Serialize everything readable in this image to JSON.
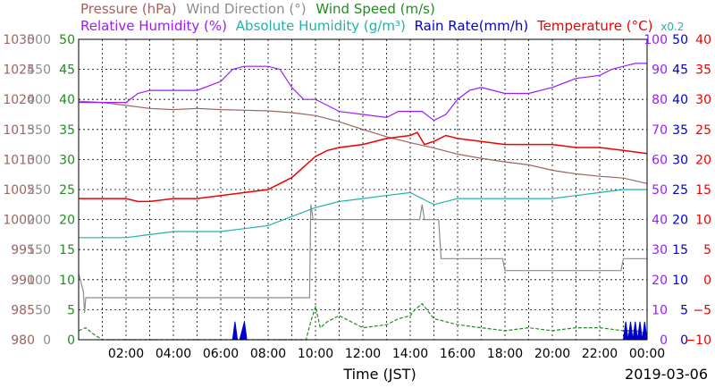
{
  "legend_row1": [
    {
      "text": "Pressure (hPa)",
      "color": "#a0625e"
    },
    {
      "text": "Wind Direction (°)",
      "color": "#8c8c8c"
    },
    {
      "text": "Wind Speed (m/s)",
      "color": "#228b22"
    }
  ],
  "legend_row2": [
    {
      "text": "Relative Humidity (%)",
      "color": "#9a1bff"
    },
    {
      "text": "Absolute Humidity (g/m³)",
      "color": "#20b2aa"
    },
    {
      "text": "Rain Rate(mm/h)",
      "color": "#0000cc"
    },
    {
      "text": "Temperature (°C)",
      "color": "#ee0000"
    }
  ],
  "scale_note": {
    "text": "x0.2",
    "color": "#20b2aa"
  },
  "x_title": "Time (JST)",
  "date_label": "2019-03-06",
  "chart_data": {
    "type": "line",
    "x_unit": "hours (JST)",
    "xlim": [
      0,
      24
    ],
    "x_ticks": [
      "02:00",
      "04:00",
      "06:00",
      "08:00",
      "10:00",
      "12:00",
      "14:00",
      "16:00",
      "18:00",
      "20:00",
      "22:00",
      "00:00"
    ],
    "left_axes": [
      {
        "name": "Pressure (hPa)",
        "color": "#a0625e",
        "ticks": [
          "1030",
          "1025",
          "1020",
          "1015",
          "1010",
          "1005",
          "1000",
          "995",
          "990",
          "985",
          "980"
        ]
      },
      {
        "name": "Wind Direction (°)",
        "color": "#8c8c8c",
        "ticks": [
          "500",
          "450",
          "400",
          "350",
          "300",
          "250",
          "200",
          "150",
          "100",
          "50",
          "0"
        ]
      },
      {
        "name": "Wind Speed (m/s)",
        "color": "#228b22",
        "ticks": [
          "50",
          "45",
          "40",
          "35",
          "30",
          "25",
          "20",
          "15",
          "10",
          "5",
          "0"
        ]
      }
    ],
    "right_axes": [
      {
        "name": "Relative Humidity (%)",
        "color": "#9a1bff",
        "ticks": [
          "100",
          "90",
          "80",
          "70",
          "60",
          "50",
          "40",
          "30",
          "20",
          "10",
          "0"
        ]
      },
      {
        "name": "Rain Rate(mm/h)",
        "color": "#0000cc",
        "ticks": [
          "50",
          "45",
          "40",
          "35",
          "30",
          "25",
          "20",
          "15",
          "10",
          "5",
          "0"
        ]
      },
      {
        "name": "Temperature (°C)",
        "color": "#ee0000",
        "ticks": [
          "40",
          "35",
          "30",
          "25",
          "20",
          "15",
          "10",
          "5",
          "0",
          "−5",
          "−10"
        ]
      }
    ],
    "series": [
      {
        "name": "Pressure (hPa)",
        "axis": "pressure",
        "color": "#a0625e",
        "x": [
          0,
          1,
          2,
          3,
          4,
          5,
          6,
          7,
          8,
          9,
          10,
          11,
          12,
          13,
          14,
          15,
          16,
          17,
          18,
          19,
          20,
          21,
          22,
          23,
          24
        ],
        "y": [
          1019.7,
          1019.5,
          1019,
          1018.5,
          1018.3,
          1018.5,
          1018.3,
          1018.2,
          1018.1,
          1017.8,
          1017.3,
          1016.3,
          1015,
          1013.8,
          1012.8,
          1011.9,
          1010.9,
          1010.2,
          1009.6,
          1009.1,
          1008.2,
          1007.6,
          1007.2,
          1006.9,
          1006
        ]
      },
      {
        "name": "Wind Direction (°)",
        "axis": "wind_direction",
        "color": "#8c8c8c",
        "x": [
          0,
          0.2,
          0.25,
          0.3,
          9.75,
          9.8,
          9.9,
          10.3,
          10.35,
          14.4,
          14.5,
          14.6,
          15.2,
          15.3,
          17.9,
          18,
          22.9,
          23,
          24
        ],
        "y": [
          110,
          80,
          45,
          70,
          70,
          225,
          200,
          200,
          200,
          200,
          225,
          200,
          200,
          135,
          135,
          115,
          115,
          135,
          135
        ]
      },
      {
        "name": "Wind Speed (m/s)",
        "axis": "wind_speed",
        "color": "#228b22",
        "x": [
          0,
          0.3,
          0.6,
          1,
          9.6,
          9.8,
          10,
          10.2,
          10.5,
          11,
          12,
          13,
          13.5,
          14,
          14.2,
          14.5,
          15,
          15.5,
          16,
          17,
          18,
          19,
          20,
          21,
          22,
          23,
          23.5,
          24
        ],
        "y": [
          1.5,
          2,
          1,
          0,
          0,
          3,
          5.5,
          2,
          3,
          4,
          2,
          2.5,
          3.5,
          4,
          5,
          6,
          3.5,
          3,
          2.5,
          2,
          1.5,
          2,
          1.5,
          2,
          2,
          1.5,
          1.5,
          1
        ]
      },
      {
        "name": "Relative Humidity (%)",
        "axis": "humidity",
        "color": "#9a1bff",
        "x": [
          0,
          1,
          2,
          2.5,
          3,
          4,
          5,
          6,
          6.5,
          7,
          8,
          8.5,
          9,
          9.5,
          10,
          10.5,
          11,
          12,
          13,
          13.5,
          14,
          14.5,
          15,
          15.5,
          16,
          16.5,
          17,
          18,
          18.5,
          19,
          20,
          21,
          22,
          22.5,
          23,
          23.5,
          24
        ],
        "y": [
          79,
          79,
          79,
          82,
          83,
          83,
          83,
          86,
          90,
          91,
          91,
          90,
          84,
          80,
          80,
          78,
          76,
          75,
          74,
          76,
          76,
          76,
          73,
          75,
          80,
          83,
          84,
          82,
          82,
          82,
          84,
          87,
          88,
          90,
          91,
          92,
          92
        ]
      },
      {
        "name": "Absolute Humidity (g/m³)",
        "axis": "abs_humidity",
        "color": "#20b2aa",
        "x": [
          0,
          1,
          2,
          3,
          4,
          5,
          6,
          7,
          8,
          9,
          10,
          11,
          12,
          13,
          14,
          14.5,
          15,
          16,
          17,
          18,
          19,
          20,
          21,
          22,
          23,
          24
        ],
        "y": [
          17,
          17,
          17,
          17.5,
          18,
          18,
          18,
          18.5,
          19,
          20.5,
          22,
          23,
          23.5,
          24,
          24.5,
          23.5,
          22.5,
          23.5,
          23.5,
          23.5,
          23.5,
          23.5,
          24,
          24.5,
          25,
          25
        ]
      },
      {
        "name": "Rain Rate(mm/h)",
        "axis": "rain",
        "color": "#0000cc",
        "x": [
          6.5,
          6.6,
          6.7,
          6.8,
          7,
          7.1,
          7.2,
          23,
          23.1,
          23.2,
          23.3,
          23.4,
          23.5,
          23.6,
          23.7,
          23.8,
          23.9,
          24
        ],
        "y": [
          0,
          3,
          0,
          0,
          3,
          0,
          0,
          0,
          3,
          0,
          3,
          0,
          3,
          0,
          3,
          0,
          3,
          0
        ]
      },
      {
        "name": "Temperature (°C)",
        "axis": "temperature",
        "color": "#ee0000",
        "x": [
          0,
          1,
          2,
          2.5,
          3,
          4,
          5,
          6,
          7,
          8,
          9,
          10,
          10.5,
          11,
          12,
          13,
          14,
          14.3,
          14.6,
          15,
          15.5,
          16,
          17,
          18,
          19,
          20,
          21,
          22,
          23,
          24
        ],
        "y": [
          13.5,
          13.5,
          13.5,
          13,
          13,
          13.5,
          13.5,
          14,
          14.5,
          15,
          17,
          20.5,
          21.5,
          22,
          22.5,
          23.5,
          24,
          24.5,
          22.5,
          23,
          24,
          23.5,
          23,
          22.5,
          22.5,
          22.5,
          22,
          22,
          21.5,
          21
        ]
      }
    ]
  }
}
